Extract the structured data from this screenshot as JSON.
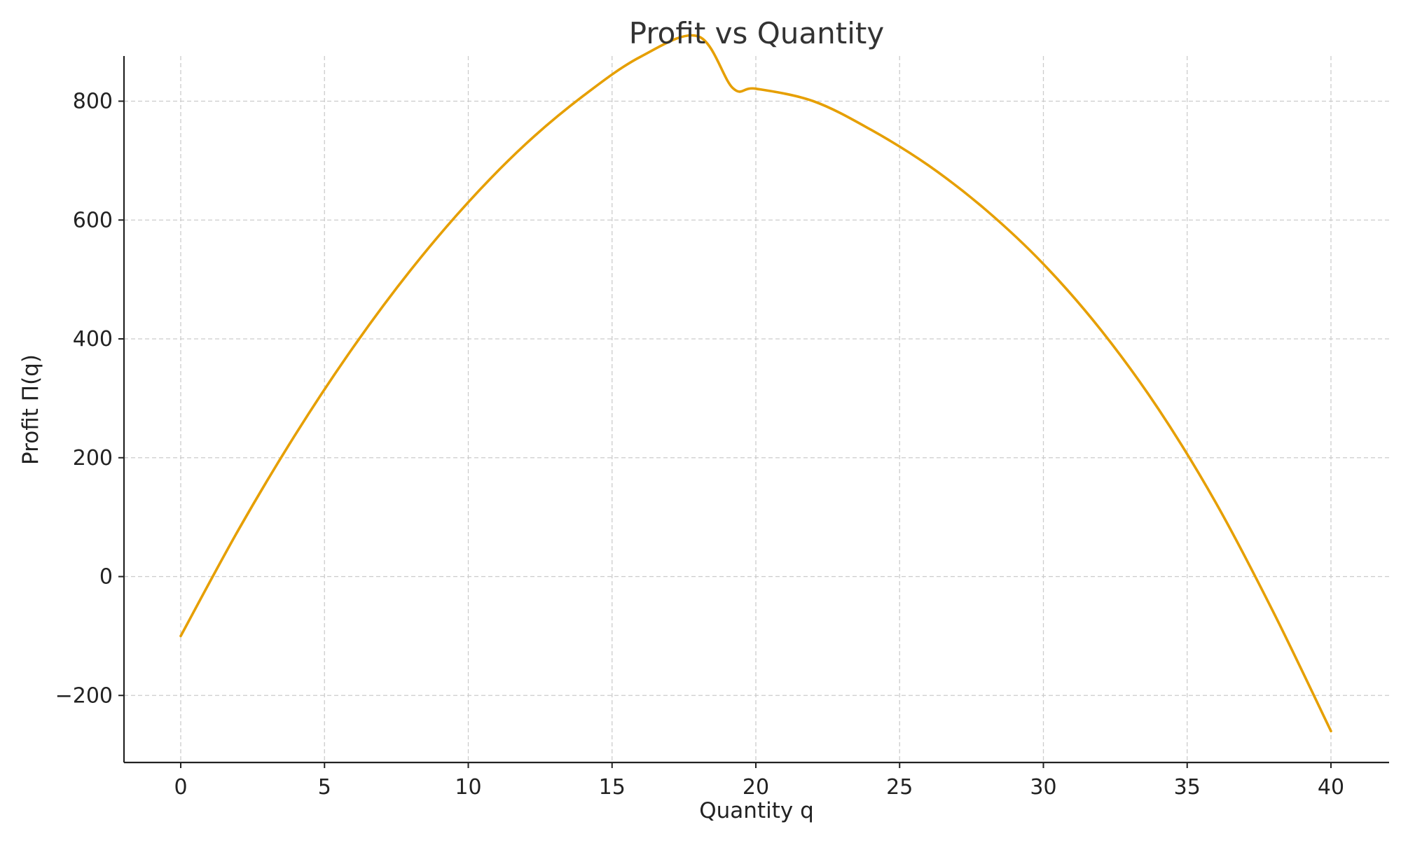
{
  "chart_data": {
    "type": "line",
    "title": "Profit vs Quantity",
    "xlabel": "Quantity q",
    "ylabel": "Profit Π(q)",
    "xlim": [
      -2,
      42
    ],
    "ylim": [
      -312,
      875
    ],
    "x_ticks": [
      {
        "value": 0,
        "label": "0"
      },
      {
        "value": 5,
        "label": "5"
      },
      {
        "value": 10,
        "label": "10"
      },
      {
        "value": 15,
        "label": "15"
      },
      {
        "value": 20,
        "label": "20"
      },
      {
        "value": 25,
        "label": "25"
      },
      {
        "value": 30,
        "label": "30"
      },
      {
        "value": 35,
        "label": "35"
      },
      {
        "value": 40,
        "label": "40"
      }
    ],
    "y_ticks": [
      {
        "value": -200,
        "label": "−200"
      },
      {
        "value": 0,
        "label": "0"
      },
      {
        "value": 200,
        "label": "200"
      },
      {
        "value": 400,
        "label": "400"
      },
      {
        "value": 600,
        "label": "600"
      },
      {
        "value": 800,
        "label": "800"
      }
    ],
    "grid": true,
    "line_color": "#E69F00",
    "series": [
      {
        "x": [
          0,
          2,
          4,
          6,
          8,
          10,
          12,
          14,
          16,
          18,
          19.2,
          20,
          22,
          24,
          26,
          28,
          30,
          32,
          34,
          36,
          38,
          40
        ],
        "values": [
          -100,
          78,
          240,
          386,
          516,
          630,
          728,
          809,
          875,
          909,
          822,
          821,
          800,
          752,
          692,
          617,
          526,
          415,
          282,
          124,
          -60,
          -260
        ]
      }
    ]
  }
}
